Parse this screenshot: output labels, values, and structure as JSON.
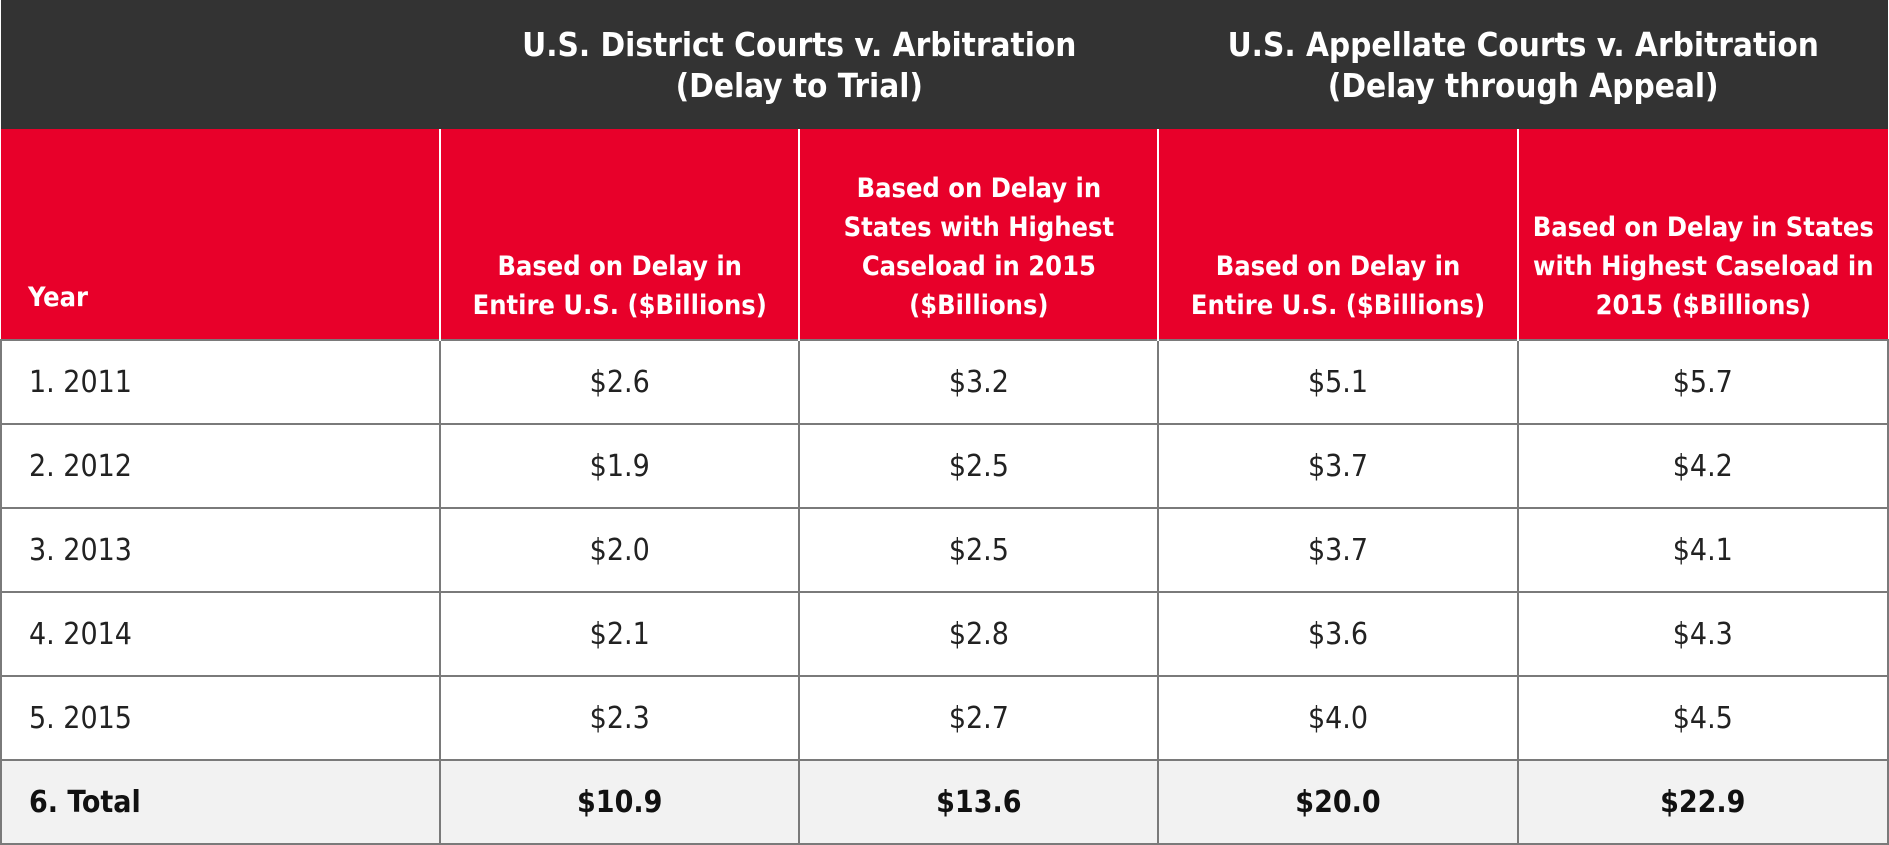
{
  "chart_data": {
    "type": "table",
    "column_groups": [
      {
        "title_line1": "U.S. District Courts v. Arbitration",
        "title_line2": "(Delay to Trial)"
      },
      {
        "title_line1": "U.S. Appellate Courts v. Arbitration",
        "title_line2": "(Delay through Appeal)"
      }
    ],
    "columns": [
      {
        "label": "Year"
      },
      {
        "label_lines": [
          "Based on Delay in",
          "Entire U.S. ($Billions)"
        ]
      },
      {
        "label_lines": [
          "Based on Delay in",
          "States with Highest",
          "Caseload in 2015",
          "($Billions)"
        ]
      },
      {
        "label_lines": [
          "Based on Delay in",
          "Entire U.S. ($Billions)"
        ]
      },
      {
        "label_lines": [
          "Based on Delay in States",
          "with Highest Caseload in",
          "2015 ($Billions)"
        ]
      }
    ],
    "rows": [
      {
        "year": "1. 2011",
        "values": [
          "$2.6",
          "$3.2",
          "$5.1",
          "$5.7"
        ]
      },
      {
        "year": "2. 2012",
        "values": [
          "$1.9",
          "$2.5",
          "$3.7",
          "$4.2"
        ]
      },
      {
        "year": "3. 2013",
        "values": [
          "$2.0",
          "$2.5",
          "$3.7",
          "$4.1"
        ]
      },
      {
        "year": "4. 2014",
        "values": [
          "$2.1",
          "$2.8",
          "$3.6",
          "$4.3"
        ]
      },
      {
        "year": "5. 2015",
        "values": [
          "$2.3",
          "$2.7",
          "$4.0",
          "$4.5"
        ]
      }
    ],
    "total": {
      "year": "6. Total",
      "values": [
        "$10.9",
        "$13.6",
        "$20.0",
        "$22.9"
      ]
    }
  },
  "colors": {
    "group_header_bg": "#333333",
    "column_header_bg": "#e8002a",
    "total_row_bg": "#f2f2f2",
    "grid_line": "#7a7a7a"
  }
}
